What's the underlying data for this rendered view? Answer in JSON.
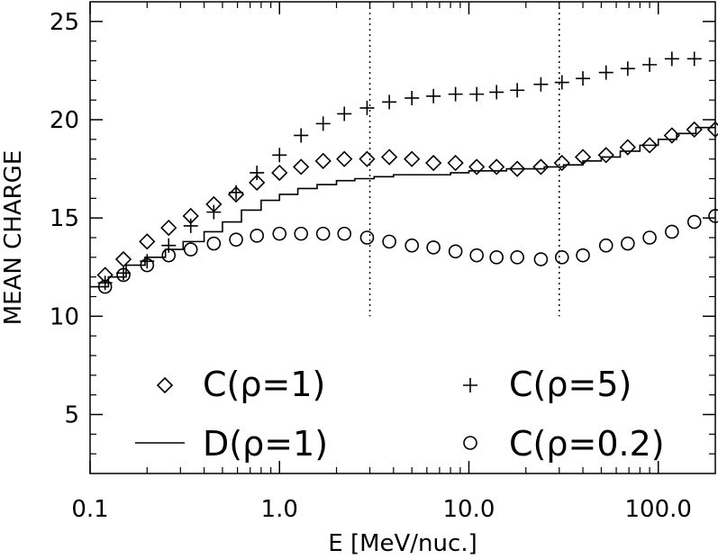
{
  "chart_data": {
    "type": "scatter",
    "xscale": "log",
    "xlim": [
      0.1,
      200
    ],
    "ylim": [
      2,
      26
    ],
    "xlabel": "E [MeV/nuc.]",
    "ylabel": "MEAN CHARGE",
    "xticks": [
      {
        "value": 0.1,
        "label": "0.1"
      },
      {
        "value": 1,
        "label": "1.0"
      },
      {
        "value": 10,
        "label": "10.0"
      },
      {
        "value": 100,
        "label": "100.0"
      }
    ],
    "yticks": [
      {
        "value": 5,
        "label": "5"
      },
      {
        "value": 10,
        "label": "10"
      },
      {
        "value": 15,
        "label": "15"
      },
      {
        "value": 20,
        "label": "20"
      },
      {
        "value": 25,
        "label": "25"
      }
    ],
    "vlines": [
      3,
      30
    ],
    "vline_ymin": 10,
    "series": [
      {
        "name": "C(ρ=1)",
        "marker": "diamond",
        "x": [
          0.12,
          0.15,
          0.2,
          0.26,
          0.34,
          0.45,
          0.59,
          0.76,
          1.0,
          1.3,
          1.7,
          2.2,
          2.9,
          3.8,
          5.0,
          6.5,
          8.5,
          11,
          14,
          18,
          24,
          31,
          40,
          53,
          69,
          90,
          118,
          155,
          200
        ],
        "y": [
          12.1,
          12.9,
          13.8,
          14.5,
          15.1,
          15.7,
          16.2,
          16.8,
          17.3,
          17.6,
          17.9,
          18.0,
          18.0,
          18.1,
          18.0,
          17.8,
          17.8,
          17.6,
          17.6,
          17.5,
          17.6,
          17.8,
          18.1,
          18.2,
          18.6,
          18.7,
          19.2,
          19.5,
          19.5
        ]
      },
      {
        "name": "C(ρ=5)",
        "marker": "plus",
        "x": [
          0.12,
          0.15,
          0.2,
          0.26,
          0.34,
          0.45,
          0.59,
          0.76,
          1.0,
          1.3,
          1.7,
          2.2,
          2.9,
          3.8,
          5.0,
          6.5,
          8.5,
          11,
          14,
          18,
          24,
          31,
          40,
          53,
          69,
          90,
          118,
          155
        ],
        "y": [
          11.7,
          12.2,
          12.8,
          13.6,
          14.6,
          15.3,
          16.3,
          17.3,
          18.2,
          19.2,
          19.8,
          20.3,
          20.6,
          20.9,
          21.1,
          21.2,
          21.3,
          21.3,
          21.4,
          21.5,
          21.8,
          21.9,
          22.1,
          22.4,
          22.6,
          22.8,
          23.1,
          23.1
        ]
      },
      {
        "name": "C(ρ=0.2)",
        "marker": "circle",
        "x": [
          0.12,
          0.15,
          0.2,
          0.26,
          0.34,
          0.45,
          0.59,
          0.76,
          1.0,
          1.3,
          1.7,
          2.2,
          2.9,
          3.8,
          5.0,
          6.5,
          8.5,
          11,
          14,
          18,
          24,
          31,
          40,
          53,
          69,
          90,
          118,
          155,
          200
        ],
        "y": [
          11.5,
          12.1,
          12.6,
          13.1,
          13.4,
          13.7,
          13.9,
          14.1,
          14.2,
          14.2,
          14.2,
          14.2,
          14.0,
          13.8,
          13.6,
          13.5,
          13.3,
          13.1,
          13.0,
          13.0,
          12.9,
          13.0,
          13.1,
          13.6,
          13.7,
          14.0,
          14.3,
          14.8,
          15.1
        ]
      },
      {
        "name": "D(ρ=1)",
        "marker": "step",
        "x": [
          0.1,
          0.125,
          0.155,
          0.195,
          0.25,
          0.31,
          0.4,
          0.5,
          0.63,
          0.8,
          1.0,
          1.25,
          1.58,
          2.0,
          2.5,
          3.16,
          4.0,
          5.0,
          6.3,
          8.0,
          10,
          12.5,
          15.8,
          20,
          25,
          31.6,
          40,
          50,
          63,
          80,
          100,
          125,
          158,
          200
        ],
        "y": [
          11.5,
          12.0,
          12.6,
          13.0,
          13.4,
          13.8,
          14.3,
          14.8,
          15.4,
          15.9,
          16.2,
          16.5,
          16.7,
          16.9,
          17.0,
          17.1,
          17.2,
          17.2,
          17.2,
          17.3,
          17.4,
          17.4,
          17.5,
          17.5,
          17.6,
          17.7,
          17.9,
          18.1,
          18.4,
          18.7,
          19.0,
          19.3,
          19.6,
          19.6
        ]
      }
    ],
    "legend": [
      {
        "marker": "diamond",
        "label": "C(ρ=1)"
      },
      {
        "marker": "plus",
        "label": "C(ρ=5)"
      },
      {
        "marker": "step",
        "label": "D(ρ=1)"
      },
      {
        "marker": "circle",
        "label": "C(ρ=0.2)"
      }
    ]
  }
}
